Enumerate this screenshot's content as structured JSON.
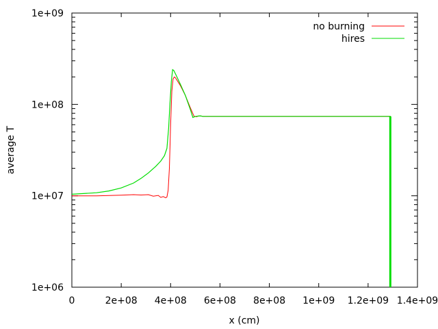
{
  "chart_data": {
    "type": "line",
    "xlabel": "x (cm)",
    "ylabel": "average T",
    "xlim": [
      0,
      1400000000
    ],
    "ylim": [
      1000000,
      1000000000
    ],
    "yscale": "log",
    "grid": false,
    "legend_position": "top-right",
    "x_ticks": [
      0,
      200000000,
      400000000,
      600000000,
      800000000,
      1000000000,
      1200000000,
      1400000000
    ],
    "x_tick_labels": [
      "0",
      "2e+08",
      "4e+08",
      "6e+08",
      "8e+08",
      "1e+09",
      "1.2e+09",
      "1.4e+09"
    ],
    "y_ticks": [
      1000000,
      10000000,
      100000000,
      1000000000
    ],
    "y_tick_labels": [
      "1e+06",
      "1e+07",
      "1e+08",
      "1e+09"
    ],
    "series": [
      {
        "name": "no burning",
        "color": "#ff0000",
        "x": [
          0,
          100000000,
          200000000,
          250000000,
          280000000,
          310000000,
          330000000,
          350000000,
          360000000,
          370000000,
          380000000,
          385000000,
          390000000,
          395000000,
          400000000,
          405000000,
          410000000,
          415000000,
          420000000,
          440000000,
          460000000,
          480000000,
          495000000,
          505000000,
          515000000,
          525000000,
          530000000,
          560000000,
          800000000,
          1000000000,
          1290000000,
          1290000000
        ],
        "y": [
          10000000,
          10000000,
          10150000,
          10300000,
          10200000,
          10300000,
          9900000,
          10100000,
          9600000,
          9800000,
          9500000,
          9700000,
          11500000,
          20000000,
          60000000,
          140000000,
          190000000,
          200000000,
          195000000,
          160000000,
          125000000,
          92000000,
          74000000,
          73500000,
          75000000,
          74500000,
          74000000,
          74000000,
          74000000,
          74000000,
          74000000,
          1000000
        ]
      },
      {
        "name": "hires",
        "color": "#00dd00",
        "x": [
          0,
          100000000,
          150000000,
          200000000,
          250000000,
          280000000,
          310000000,
          340000000,
          360000000,
          375000000,
          385000000,
          392000000,
          398000000,
          403000000,
          408000000,
          413000000,
          420000000,
          440000000,
          460000000,
          480000000,
          490000000,
          500000000,
          520000000,
          530000000,
          560000000,
          800000000,
          1000000000,
          1290000000,
          1290000000
        ],
        "y": [
          10400000,
          10800000,
          11300000,
          12200000,
          13800000,
          15500000,
          17800000,
          21000000,
          24000000,
          27500000,
          33000000,
          55000000,
          110000000,
          180000000,
          240000000,
          235000000,
          215000000,
          165000000,
          125000000,
          88000000,
          72000000,
          74000000,
          75000000,
          74000000,
          74000000,
          74000000,
          74000000,
          74000000,
          1000000
        ]
      }
    ]
  }
}
